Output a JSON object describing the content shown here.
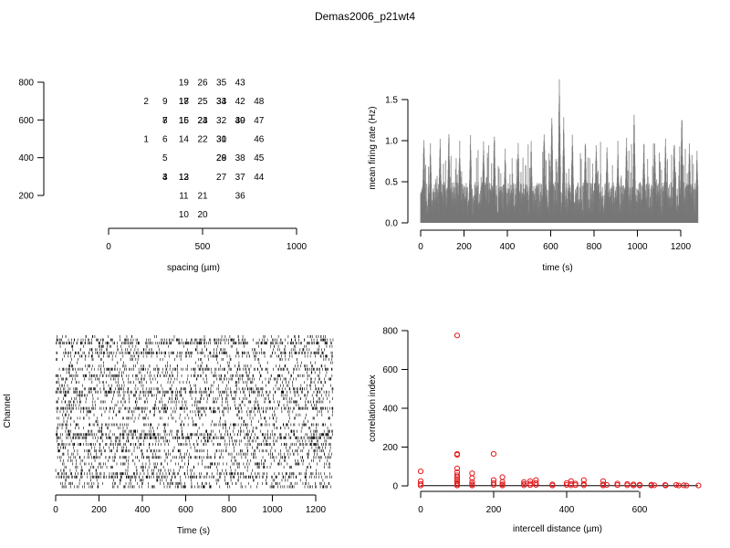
{
  "figure_title": "Demas2006_p21wt4",
  "colors": {
    "rate": "#777777",
    "correlation": "#e41a1c",
    "ink": "#000000"
  },
  "chart_data": [
    {
      "panel": "electrode-layout",
      "type": "scatter",
      "xlabel": "spacing (µm)",
      "ylabel": "",
      "xlim": [
        0,
        1000
      ],
      "ylim": [
        100,
        850
      ],
      "xticks": [
        0,
        500,
        1000
      ],
      "yticks": [
        200,
        400,
        600,
        800
      ],
      "points": [
        {
          "label": "1",
          "x": 200,
          "y": 500
        },
        {
          "label": "2",
          "x": 200,
          "y": 700
        },
        {
          "label": "3",
          "x": 300,
          "y": 300
        },
        {
          "label": "4",
          "x": 300,
          "y": 300
        },
        {
          "label": "5",
          "x": 300,
          "y": 400
        },
        {
          "label": "6",
          "x": 300,
          "y": 500
        },
        {
          "label": "7",
          "x": 300,
          "y": 600
        },
        {
          "label": "8",
          "x": 300,
          "y": 600
        },
        {
          "label": "9",
          "x": 300,
          "y": 700
        },
        {
          "label": "10",
          "x": 400,
          "y": 100
        },
        {
          "label": "11",
          "x": 400,
          "y": 200
        },
        {
          "label": "12",
          "x": 400,
          "y": 300
        },
        {
          "label": "13",
          "x": 400,
          "y": 300
        },
        {
          "label": "14",
          "x": 400,
          "y": 500
        },
        {
          "label": "15",
          "x": 400,
          "y": 600
        },
        {
          "label": "16",
          "x": 400,
          "y": 600
        },
        {
          "label": "17",
          "x": 400,
          "y": 700
        },
        {
          "label": "18",
          "x": 400,
          "y": 700
        },
        {
          "label": "19",
          "x": 400,
          "y": 800
        },
        {
          "label": "20",
          "x": 500,
          "y": 100
        },
        {
          "label": "21",
          "x": 500,
          "y": 200
        },
        {
          "label": "22",
          "x": 500,
          "y": 500
        },
        {
          "label": "23",
          "x": 500,
          "y": 600
        },
        {
          "label": "24",
          "x": 500,
          "y": 600
        },
        {
          "label": "25",
          "x": 500,
          "y": 700
        },
        {
          "label": "26",
          "x": 500,
          "y": 800
        },
        {
          "label": "27",
          "x": 600,
          "y": 300
        },
        {
          "label": "28",
          "x": 600,
          "y": 400
        },
        {
          "label": "29",
          "x": 600,
          "y": 400
        },
        {
          "label": "30",
          "x": 600,
          "y": 500
        },
        {
          "label": "31",
          "x": 600,
          "y": 500
        },
        {
          "label": "32",
          "x": 600,
          "y": 600
        },
        {
          "label": "33",
          "x": 600,
          "y": 700
        },
        {
          "label": "34",
          "x": 600,
          "y": 700
        },
        {
          "label": "35",
          "x": 600,
          "y": 800
        },
        {
          "label": "36",
          "x": 700,
          "y": 200
        },
        {
          "label": "37",
          "x": 700,
          "y": 300
        },
        {
          "label": "38",
          "x": 700,
          "y": 400
        },
        {
          "label": "39",
          "x": 700,
          "y": 600
        },
        {
          "label": "40",
          "x": 700,
          "y": 600
        },
        {
          "label": "42",
          "x": 700,
          "y": 700
        },
        {
          "label": "43",
          "x": 700,
          "y": 800
        },
        {
          "label": "44",
          "x": 800,
          "y": 300
        },
        {
          "label": "45",
          "x": 800,
          "y": 400
        },
        {
          "label": "46",
          "x": 800,
          "y": 500
        },
        {
          "label": "47",
          "x": 800,
          "y": 600
        },
        {
          "label": "48",
          "x": 800,
          "y": 700
        }
      ]
    },
    {
      "panel": "mean-firing-rate",
      "type": "bar",
      "xlabel": "time (s)",
      "ylabel": "mean firing rate (Hz)",
      "xlim": [
        0,
        1280
      ],
      "ylim": [
        0,
        1.75
      ],
      "xticks": [
        0,
        200,
        400,
        600,
        800,
        1000,
        1200
      ],
      "yticks": [
        0.0,
        0.5,
        1.0,
        1.5
      ],
      "ytick_labels": [
        "0.0",
        "0.5",
        "1.0",
        "1.5"
      ],
      "bin_width_s": 1,
      "series": [
        {
          "values_envelope": {
            "baseline_range": [
              0.1,
              0.5
            ],
            "peaks": [
              {
                "x": 15,
                "y": 1.15
              },
              {
                "x": 45,
                "y": 1.0
              },
              {
                "x": 90,
                "y": 1.1
              },
              {
                "x": 130,
                "y": 1.2
              },
              {
                "x": 180,
                "y": 1.05
              },
              {
                "x": 230,
                "y": 1.1
              },
              {
                "x": 290,
                "y": 1.05
              },
              {
                "x": 340,
                "y": 1.2
              },
              {
                "x": 390,
                "y": 0.95
              },
              {
                "x": 450,
                "y": 1.05
              },
              {
                "x": 510,
                "y": 1.0
              },
              {
                "x": 570,
                "y": 1.25
              },
              {
                "x": 605,
                "y": 1.45
              },
              {
                "x": 640,
                "y": 1.82
              },
              {
                "x": 660,
                "y": 1.35
              },
              {
                "x": 700,
                "y": 1.2
              },
              {
                "x": 760,
                "y": 1.1
              },
              {
                "x": 810,
                "y": 1.05
              },
              {
                "x": 860,
                "y": 1.0
              },
              {
                "x": 910,
                "y": 1.0
              },
              {
                "x": 950,
                "y": 1.15
              },
              {
                "x": 985,
                "y": 1.5
              },
              {
                "x": 1030,
                "y": 1.1
              },
              {
                "x": 1080,
                "y": 1.0
              },
              {
                "x": 1130,
                "y": 1.1
              },
              {
                "x": 1170,
                "y": 1.1
              },
              {
                "x": 1205,
                "y": 1.45
              },
              {
                "x": 1240,
                "y": 1.05
              },
              {
                "x": 1275,
                "y": 0.95
              }
            ]
          }
        }
      ]
    },
    {
      "panel": "spike-raster",
      "type": "scatter",
      "xlabel": "Time (s)",
      "ylabel": "Channel",
      "xlim": [
        0,
        1280
      ],
      "xticks": [
        0,
        200,
        400,
        600,
        800,
        1000,
        1200
      ],
      "n_channels": 47,
      "channel_density": [
        2,
        6,
        9,
        2,
        3,
        8,
        4,
        2,
        1,
        3,
        7,
        2,
        6,
        4,
        3,
        2,
        6,
        8,
        4,
        3,
        5,
        2,
        9,
        4,
        2,
        3,
        1,
        6,
        2,
        4,
        8,
        9,
        3,
        7,
        2,
        5,
        3,
        6,
        2,
        4,
        3,
        2,
        6,
        8,
        2,
        4,
        5
      ]
    },
    {
      "panel": "correlation",
      "type": "scatter",
      "xlabel": "intercell distance (µm)",
      "ylabel": "correlation index",
      "xlim": [
        0,
        760
      ],
      "ylim": [
        0,
        800
      ],
      "xticks": [
        0,
        200,
        400,
        600
      ],
      "yticks": [
        0,
        200,
        400,
        600,
        800
      ],
      "reference_line_y": 1,
      "series": [
        {
          "points": [
            [
              0,
              75
            ],
            [
              0,
              25
            ],
            [
              0,
              10
            ],
            [
              0,
              2
            ],
            [
              100,
              775
            ],
            [
              100,
              165
            ],
            [
              100,
              160
            ],
            [
              100,
              90
            ],
            [
              100,
              70
            ],
            [
              100,
              55
            ],
            [
              100,
              45
            ],
            [
              100,
              35
            ],
            [
              100,
              25
            ],
            [
              100,
              15
            ],
            [
              100,
              8
            ],
            [
              100,
              2
            ],
            [
              141,
              65
            ],
            [
              141,
              40
            ],
            [
              141,
              20
            ],
            [
              141,
              8
            ],
            [
              141,
              2
            ],
            [
              200,
              165
            ],
            [
              200,
              30
            ],
            [
              200,
              15
            ],
            [
              200,
              5
            ],
            [
              224,
              45
            ],
            [
              224,
              20
            ],
            [
              224,
              8
            ],
            [
              224,
              2
            ],
            [
              283,
              20
            ],
            [
              283,
              10
            ],
            [
              283,
              3
            ],
            [
              300,
              25
            ],
            [
              300,
              12
            ],
            [
              300,
              4
            ],
            [
              316,
              30
            ],
            [
              316,
              15
            ],
            [
              316,
              5
            ],
            [
              361,
              8
            ],
            [
              361,
              2
            ],
            [
              400,
              15
            ],
            [
              400,
              5
            ],
            [
              412,
              25
            ],
            [
              412,
              10
            ],
            [
              412,
              3
            ],
            [
              424,
              12
            ],
            [
              424,
              4
            ],
            [
              447,
              30
            ],
            [
              447,
              10
            ],
            [
              447,
              3
            ],
            [
              500,
              25
            ],
            [
              500,
              8
            ],
            [
              500,
              2
            ],
            [
              510,
              5
            ],
            [
              539,
              12
            ],
            [
              539,
              4
            ],
            [
              566,
              10
            ],
            [
              566,
              3
            ],
            [
              583,
              8
            ],
            [
              583,
              2
            ],
            [
              600,
              6
            ],
            [
              600,
              2
            ],
            [
              632,
              6
            ],
            [
              632,
              2
            ],
            [
              640,
              3
            ],
            [
              670,
              5
            ],
            [
              671,
              2
            ],
            [
              700,
              5
            ],
            [
              707,
              2
            ],
            [
              721,
              3
            ],
            [
              728,
              2
            ],
            [
              761,
              2
            ]
          ]
        }
      ]
    }
  ]
}
